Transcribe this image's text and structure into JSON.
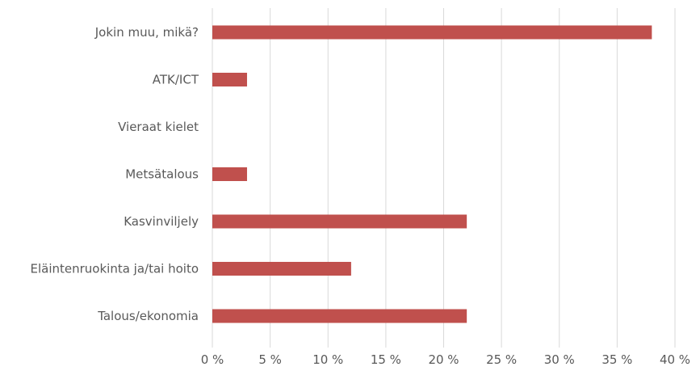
{
  "chart_data": {
    "type": "bar",
    "orientation": "horizontal",
    "title": "",
    "xlabel": "",
    "ylabel": "",
    "categories": [
      "Jokin muu, mikä?",
      "ATK/ICT",
      "Vieraat kielet",
      "Metsätalous",
      "Kasvinviljely",
      "Eläintenruokinta ja/tai hoito",
      "Talous/ekonomia"
    ],
    "values": [
      38,
      3,
      0,
      3,
      22,
      12,
      22
    ],
    "value_unit": "%",
    "xlim": [
      0,
      40
    ],
    "x_ticks": [
      0,
      5,
      10,
      15,
      20,
      25,
      30,
      35,
      40
    ],
    "x_tick_labels": [
      "0 %",
      "5 %",
      "10 %",
      "15 %",
      "20 %",
      "25 %",
      "30 %",
      "35 %",
      "40 %"
    ],
    "grid": "vertical",
    "legend": "none",
    "colors": {
      "bar": "#c0504d",
      "grid": "#d9d9d9",
      "text": "#595959"
    }
  }
}
